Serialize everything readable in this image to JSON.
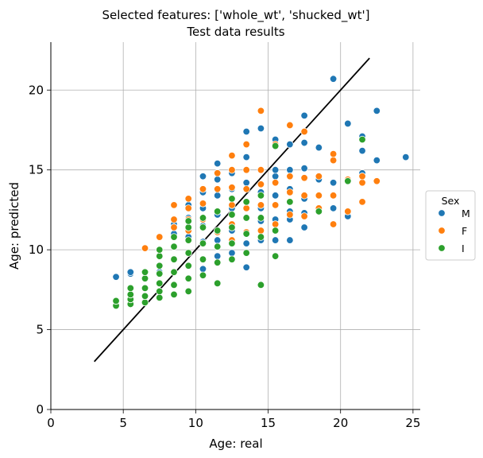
{
  "chart_data": {
    "type": "scatter",
    "title": "Selected features: ['whole_wt', 'shucked_wt']",
    "subtitle": "Test data results",
    "xlabel": "Age: real",
    "ylabel": "Age: predicted",
    "xlim": [
      0,
      25.5
    ],
    "ylim": [
      0,
      23
    ],
    "xticks": [
      0,
      5,
      10,
      15,
      20,
      25
    ],
    "yticks": [
      0,
      5,
      10,
      15,
      20
    ],
    "grid": true,
    "legend": {
      "title": "Sex",
      "placement": "center-right-outside"
    },
    "reference_line": {
      "x": [
        3,
        22
      ],
      "y": [
        3,
        22
      ],
      "color": "#000000"
    },
    "series": [
      {
        "name": "M",
        "color": "#1f77b4",
        "points": [
          [
            4.5,
            8.3
          ],
          [
            5.5,
            8.5
          ],
          [
            5.5,
            8.6
          ],
          [
            6.5,
            8.6
          ],
          [
            7.5,
            8.6
          ],
          [
            8.5,
            10.2
          ],
          [
            8.5,
            11.0
          ],
          [
            8.5,
            11.6
          ],
          [
            9.5,
            10.8
          ],
          [
            9.5,
            12.0
          ],
          [
            9.5,
            12.8
          ],
          [
            10.5,
            8.8
          ],
          [
            10.5,
            10.5
          ],
          [
            10.5,
            11.5
          ],
          [
            10.5,
            12.6
          ],
          [
            10.5,
            13.6
          ],
          [
            10.5,
            14.6
          ],
          [
            11.5,
            9.6
          ],
          [
            11.5,
            10.6
          ],
          [
            11.5,
            12.2
          ],
          [
            11.5,
            13.4
          ],
          [
            11.5,
            14.4
          ],
          [
            11.5,
            15.4
          ],
          [
            12.5,
            9.8
          ],
          [
            12.5,
            11.2
          ],
          [
            12.5,
            12.6
          ],
          [
            12.5,
            13.8
          ],
          [
            12.5,
            14.8
          ],
          [
            13.5,
            8.9
          ],
          [
            13.5,
            10.4
          ],
          [
            13.5,
            12.6
          ],
          [
            13.5,
            14.2
          ],
          [
            13.5,
            15.8
          ],
          [
            13.5,
            17.4
          ],
          [
            14.5,
            10.6
          ],
          [
            14.5,
            11.8
          ],
          [
            14.5,
            12.6
          ],
          [
            14.5,
            13.6
          ],
          [
            14.5,
            15.0
          ],
          [
            14.5,
            17.6
          ],
          [
            15.5,
            10.6
          ],
          [
            15.5,
            11.9
          ],
          [
            15.5,
            12.8
          ],
          [
            15.5,
            13.4
          ],
          [
            15.5,
            14.6
          ],
          [
            15.5,
            15.0
          ],
          [
            15.5,
            16.9
          ],
          [
            16.5,
            10.6
          ],
          [
            16.5,
            11.9
          ],
          [
            16.5,
            12.4
          ],
          [
            16.5,
            13.8
          ],
          [
            16.5,
            15.0
          ],
          [
            16.5,
            16.6
          ],
          [
            17.5,
            11.4
          ],
          [
            17.5,
            12.3
          ],
          [
            17.5,
            13.2
          ],
          [
            17.5,
            15.1
          ],
          [
            17.5,
            16.7
          ],
          [
            17.5,
            18.4
          ],
          [
            18.5,
            12.5
          ],
          [
            18.5,
            13.4
          ],
          [
            18.5,
            14.4
          ],
          [
            18.5,
            16.4
          ],
          [
            19.5,
            12.6
          ],
          [
            19.5,
            14.2
          ],
          [
            19.5,
            20.7
          ],
          [
            20.5,
            12.1
          ],
          [
            20.5,
            14.4
          ],
          [
            20.5,
            17.9
          ],
          [
            21.5,
            14.8
          ],
          [
            21.5,
            16.2
          ],
          [
            21.5,
            17.1
          ],
          [
            22.5,
            15.6
          ],
          [
            22.5,
            18.7
          ],
          [
            24.5,
            15.8
          ]
        ]
      },
      {
        "name": "F",
        "color": "#ff7f0e",
        "points": [
          [
            6.5,
            10.1
          ],
          [
            7.5,
            10.8
          ],
          [
            8.5,
            11.4
          ],
          [
            8.5,
            11.9
          ],
          [
            8.5,
            12.8
          ],
          [
            9.5,
            11.2
          ],
          [
            9.5,
            11.9
          ],
          [
            9.5,
            12.6
          ],
          [
            9.5,
            13.2
          ],
          [
            10.5,
            10.4
          ],
          [
            10.5,
            11.9
          ],
          [
            10.5,
            12.9
          ],
          [
            10.5,
            13.8
          ],
          [
            11.5,
            10.2
          ],
          [
            11.5,
            11.1
          ],
          [
            11.5,
            12.4
          ],
          [
            11.5,
            13.8
          ],
          [
            11.5,
            14.8
          ],
          [
            12.5,
            10.6
          ],
          [
            12.5,
            11.6
          ],
          [
            12.5,
            12.8
          ],
          [
            12.5,
            13.9
          ],
          [
            12.5,
            15.0
          ],
          [
            12.5,
            15.9
          ],
          [
            13.5,
            11.1
          ],
          [
            13.5,
            12.6
          ],
          [
            13.5,
            13.8
          ],
          [
            13.5,
            15.0
          ],
          [
            13.5,
            16.6
          ],
          [
            14.5,
            11.2
          ],
          [
            14.5,
            12.8
          ],
          [
            14.5,
            14.1
          ],
          [
            14.5,
            15.0
          ],
          [
            14.5,
            18.7
          ],
          [
            15.5,
            11.6
          ],
          [
            15.5,
            12.8
          ],
          [
            15.5,
            14.2
          ],
          [
            15.5,
            16.6
          ],
          [
            16.5,
            12.2
          ],
          [
            16.5,
            13.6
          ],
          [
            16.5,
            14.6
          ],
          [
            16.5,
            17.8
          ],
          [
            17.5,
            12.1
          ],
          [
            17.5,
            13.4
          ],
          [
            17.5,
            14.5
          ],
          [
            17.5,
            17.4
          ],
          [
            18.5,
            12.6
          ],
          [
            18.5,
            13.4
          ],
          [
            18.5,
            14.6
          ],
          [
            19.5,
            11.6
          ],
          [
            19.5,
            13.4
          ],
          [
            19.5,
            15.6
          ],
          [
            19.5,
            16.0
          ],
          [
            20.5,
            12.4
          ],
          [
            20.5,
            14.4
          ],
          [
            21.5,
            13.0
          ],
          [
            21.5,
            14.2
          ],
          [
            21.5,
            14.6
          ],
          [
            22.5,
            14.3
          ]
        ]
      },
      {
        "name": "I",
        "color": "#2ca02c",
        "points": [
          [
            4.5,
            6.5
          ],
          [
            4.5,
            6.8
          ],
          [
            5.5,
            6.6
          ],
          [
            5.5,
            6.9
          ],
          [
            5.5,
            7.2
          ],
          [
            5.5,
            7.6
          ],
          [
            6.5,
            6.7
          ],
          [
            6.5,
            7.1
          ],
          [
            6.5,
            7.6
          ],
          [
            6.5,
            8.2
          ],
          [
            6.5,
            8.6
          ],
          [
            7.5,
            7.0
          ],
          [
            7.5,
            7.4
          ],
          [
            7.5,
            7.9
          ],
          [
            7.5,
            8.5
          ],
          [
            7.5,
            9.0
          ],
          [
            7.5,
            9.6
          ],
          [
            7.5,
            10.0
          ],
          [
            8.5,
            7.2
          ],
          [
            8.5,
            7.8
          ],
          [
            8.5,
            8.6
          ],
          [
            8.5,
            9.4
          ],
          [
            8.5,
            10.2
          ],
          [
            8.5,
            10.8
          ],
          [
            9.5,
            7.4
          ],
          [
            9.5,
            8.2
          ],
          [
            9.5,
            9.0
          ],
          [
            9.5,
            9.8
          ],
          [
            9.5,
            10.6
          ],
          [
            9.5,
            11.4
          ],
          [
            9.5,
            11.8
          ],
          [
            10.5,
            8.4
          ],
          [
            10.5,
            9.4
          ],
          [
            10.5,
            10.4
          ],
          [
            10.5,
            11.4
          ],
          [
            10.5,
            12.0
          ],
          [
            11.5,
            7.9
          ],
          [
            11.5,
            9.2
          ],
          [
            11.5,
            10.2
          ],
          [
            11.5,
            11.2
          ],
          [
            11.5,
            12.4
          ],
          [
            12.5,
            9.4
          ],
          [
            12.5,
            10.4
          ],
          [
            12.5,
            11.4
          ],
          [
            12.5,
            12.2
          ],
          [
            12.5,
            13.2
          ],
          [
            13.5,
            9.8
          ],
          [
            13.5,
            11.0
          ],
          [
            13.5,
            12.0
          ],
          [
            13.5,
            13.0
          ],
          [
            14.5,
            7.8
          ],
          [
            14.5,
            10.8
          ],
          [
            14.5,
            12.0
          ],
          [
            14.5,
            13.4
          ],
          [
            15.5,
            9.6
          ],
          [
            15.5,
            11.2
          ],
          [
            15.5,
            16.5
          ],
          [
            16.5,
            13.0
          ],
          [
            18.5,
            12.4
          ],
          [
            20.5,
            14.3
          ],
          [
            21.5,
            16.9
          ]
        ]
      }
    ]
  }
}
